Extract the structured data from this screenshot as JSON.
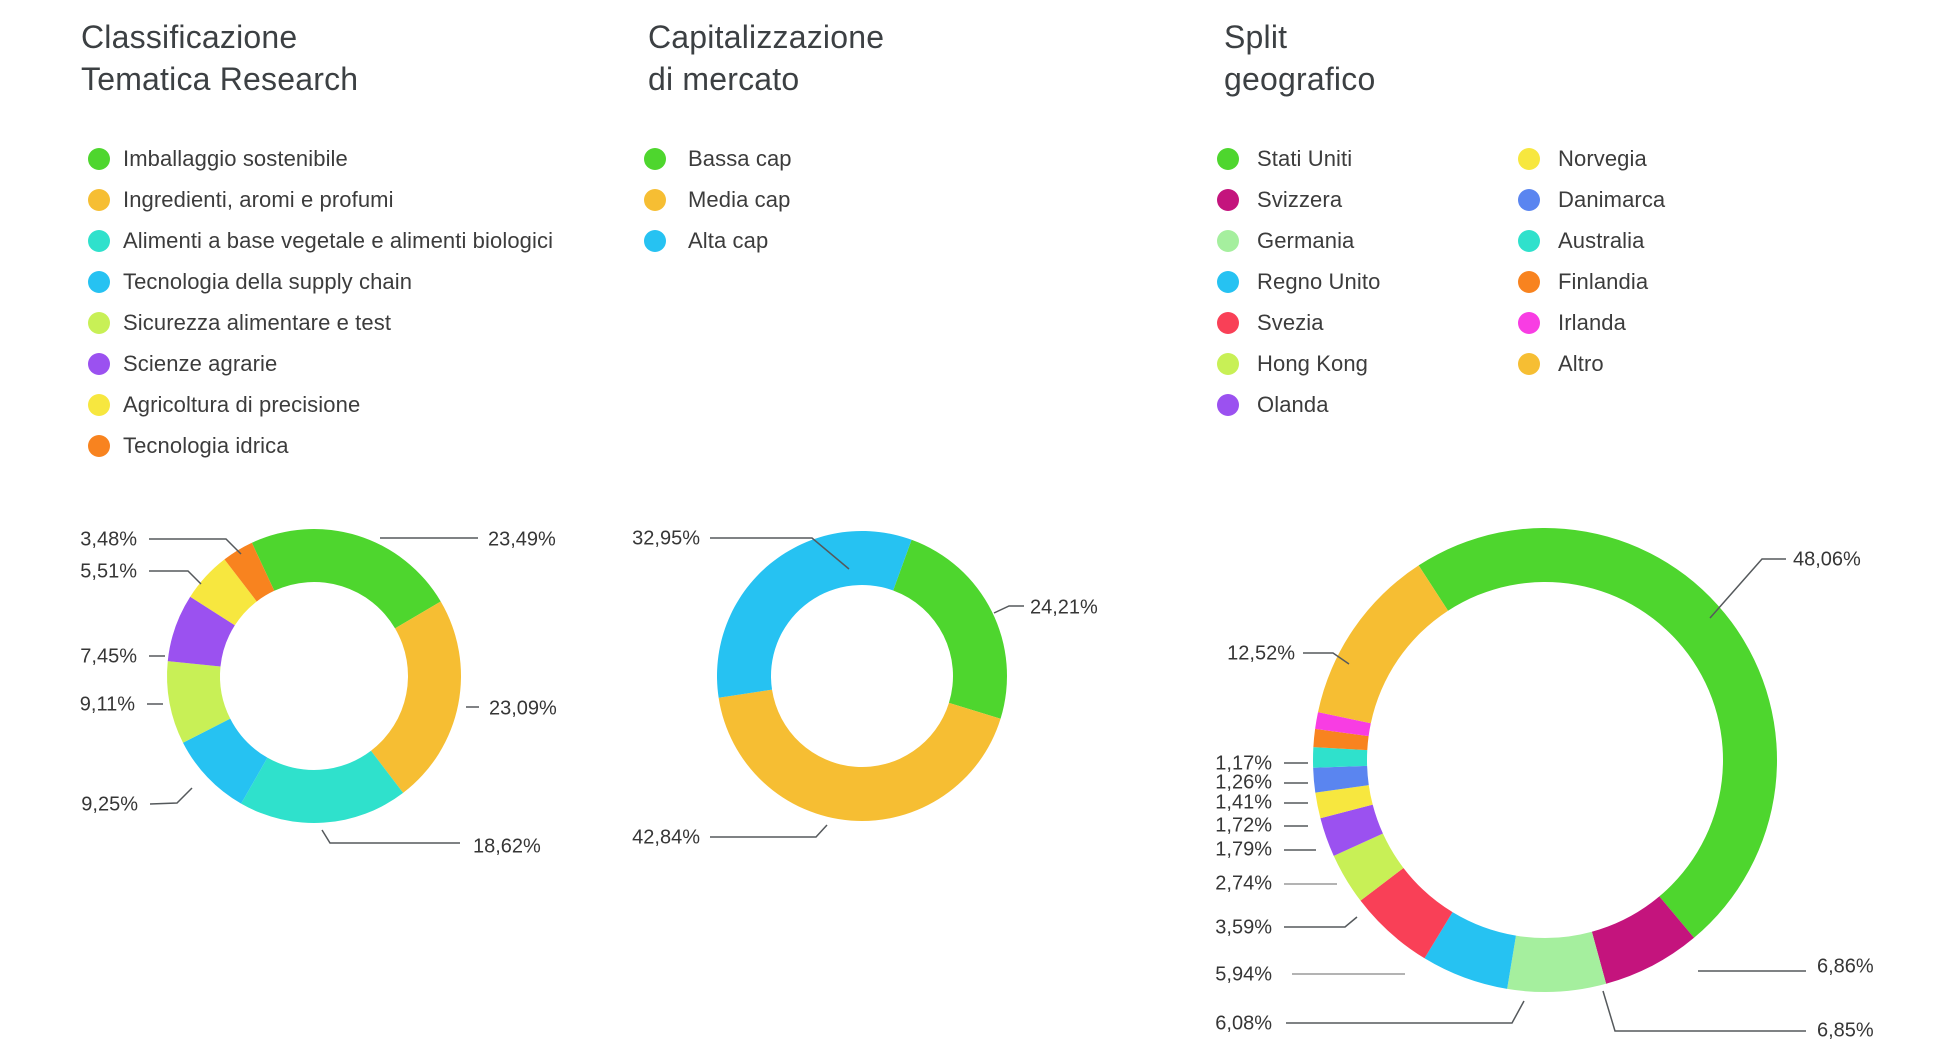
{
  "chart_data": [
    {
      "type": "donut",
      "title": "Classificazione Tematica Research",
      "title_lines": [
        "Classificazione",
        "Tematica Research"
      ],
      "legend_position": "top-left",
      "series": [
        {
          "label": "Imballaggio sostenibile",
          "value": 23.49,
          "pct_label": "23,49%",
          "color": "#4ed62e"
        },
        {
          "label": "Ingredienti, aromi e profumi",
          "value": 23.09,
          "pct_label": "23,09%",
          "color": "#f6be33"
        },
        {
          "label": "Alimenti a base vegetale e alimenti biologici",
          "value": 18.62,
          "pct_label": "18,62%",
          "color": "#2fe1cc"
        },
        {
          "label": "Tecnologia della supply chain",
          "value": 9.25,
          "pct_label": "9,25%",
          "color": "#26c2f2"
        },
        {
          "label": "Sicurezza alimentare e test",
          "value": 9.11,
          "pct_label": "9,11%",
          "color": "#c8f056"
        },
        {
          "label": "Scienze agrarie",
          "value": 7.45,
          "pct_label": "7,45%",
          "color": "#9b51f0"
        },
        {
          "label": "Agricoltura di precisione",
          "value": 5.51,
          "pct_label": "5,51%",
          "color": "#f7e73f"
        },
        {
          "label": "Tecnologia idrica",
          "value": 3.48,
          "pct_label": "3,48%",
          "color": "#f8831f"
        }
      ]
    },
    {
      "type": "donut",
      "title": "Capitalizzazione di mercato",
      "title_lines": [
        "Capitalizzazione",
        "di mercato"
      ],
      "legend_position": "top-left",
      "series": [
        {
          "label": "Bassa cap",
          "value": 24.21,
          "pct_label": "24,21%",
          "color": "#4ed62e"
        },
        {
          "label": "Media cap",
          "value": 42.84,
          "pct_label": "42,84%",
          "color": "#f6be33"
        },
        {
          "label": "Alta cap",
          "value": 32.95,
          "pct_label": "32,95%",
          "color": "#26c2f2"
        }
      ]
    },
    {
      "type": "donut",
      "title": "Split geografico",
      "title_lines": [
        "Split",
        "geografico"
      ],
      "legend_position": "top-left",
      "legend_columns": 2,
      "series": [
        {
          "label": "Stati Uniti",
          "value": 48.06,
          "pct_label": "48,06%",
          "color": "#4ed62e"
        },
        {
          "label": "Svizzera",
          "value": 6.86,
          "pct_label": "6,86%",
          "color": "#c4147d"
        },
        {
          "label": "Germania",
          "value": 6.85,
          "pct_label": "6,85%",
          "color": "#a5ef9e"
        },
        {
          "label": "Regno Unito",
          "value": 6.08,
          "pct_label": "6,08%",
          "color": "#26c2f2"
        },
        {
          "label": "Svezia",
          "value": 5.94,
          "pct_label": "5,94%",
          "color": "#f94057"
        },
        {
          "label": "Hong Kong",
          "value": 3.59,
          "pct_label": "3,59%",
          "color": "#c8f056"
        },
        {
          "label": "Olanda",
          "value": 2.74,
          "pct_label": "2,74%",
          "color": "#9b51f0"
        },
        {
          "label": "Norvegia",
          "value": 1.79,
          "pct_label": "1,79%",
          "color": "#f7e73f"
        },
        {
          "label": "Danimarca",
          "value": 1.72,
          "pct_label": "1,72%",
          "color": "#5a85f0"
        },
        {
          "label": "Australia",
          "value": 1.41,
          "pct_label": "1,41%",
          "color": "#2fe1cc"
        },
        {
          "label": "Finlandia",
          "value": 1.26,
          "pct_label": "1,26%",
          "color": "#f8831f"
        },
        {
          "label": "Irlanda",
          "value": 1.17,
          "pct_label": "1,17%",
          "color": "#f83de3"
        },
        {
          "label": "Altro",
          "value": 12.52,
          "pct_label": "12,52%",
          "color": "#f6be33"
        }
      ]
    }
  ]
}
